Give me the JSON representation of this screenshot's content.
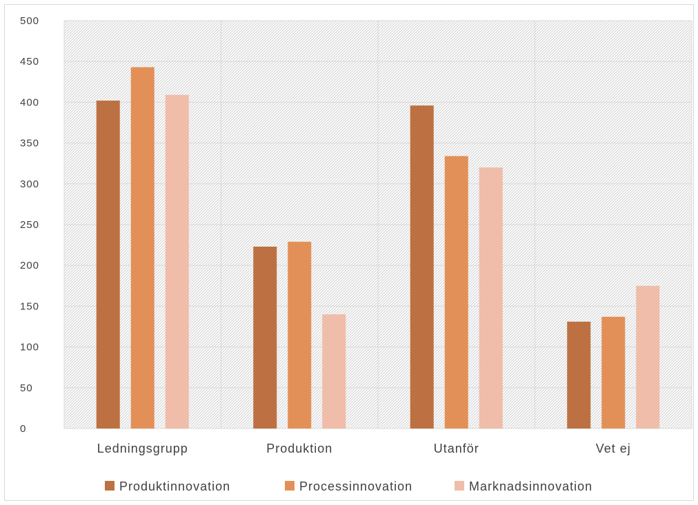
{
  "chart_data": {
    "type": "bar",
    "title": "",
    "xlabel": "",
    "ylabel": "",
    "categories": [
      "Ledningsgrupp",
      "Produktion",
      "Utanför",
      "Vet ej"
    ],
    "series": [
      {
        "name": "Produktinnovation",
        "values": [
          402,
          223,
          396,
          131
        ]
      },
      {
        "name": "Processinnovation",
        "values": [
          443,
          229,
          334,
          137
        ]
      },
      {
        "name": "Marknadsinnovation",
        "values": [
          409,
          140,
          320,
          175
        ]
      }
    ],
    "ylim": [
      0,
      500
    ],
    "yticks": [
      0,
      50,
      100,
      150,
      200,
      250,
      300,
      350,
      400,
      450,
      500
    ],
    "grid": true,
    "plot_background": "diagonal-hatch",
    "legend_position": "bottom",
    "colors": [
      "#bd7142",
      "#e39058",
      "#efbda9"
    ]
  }
}
